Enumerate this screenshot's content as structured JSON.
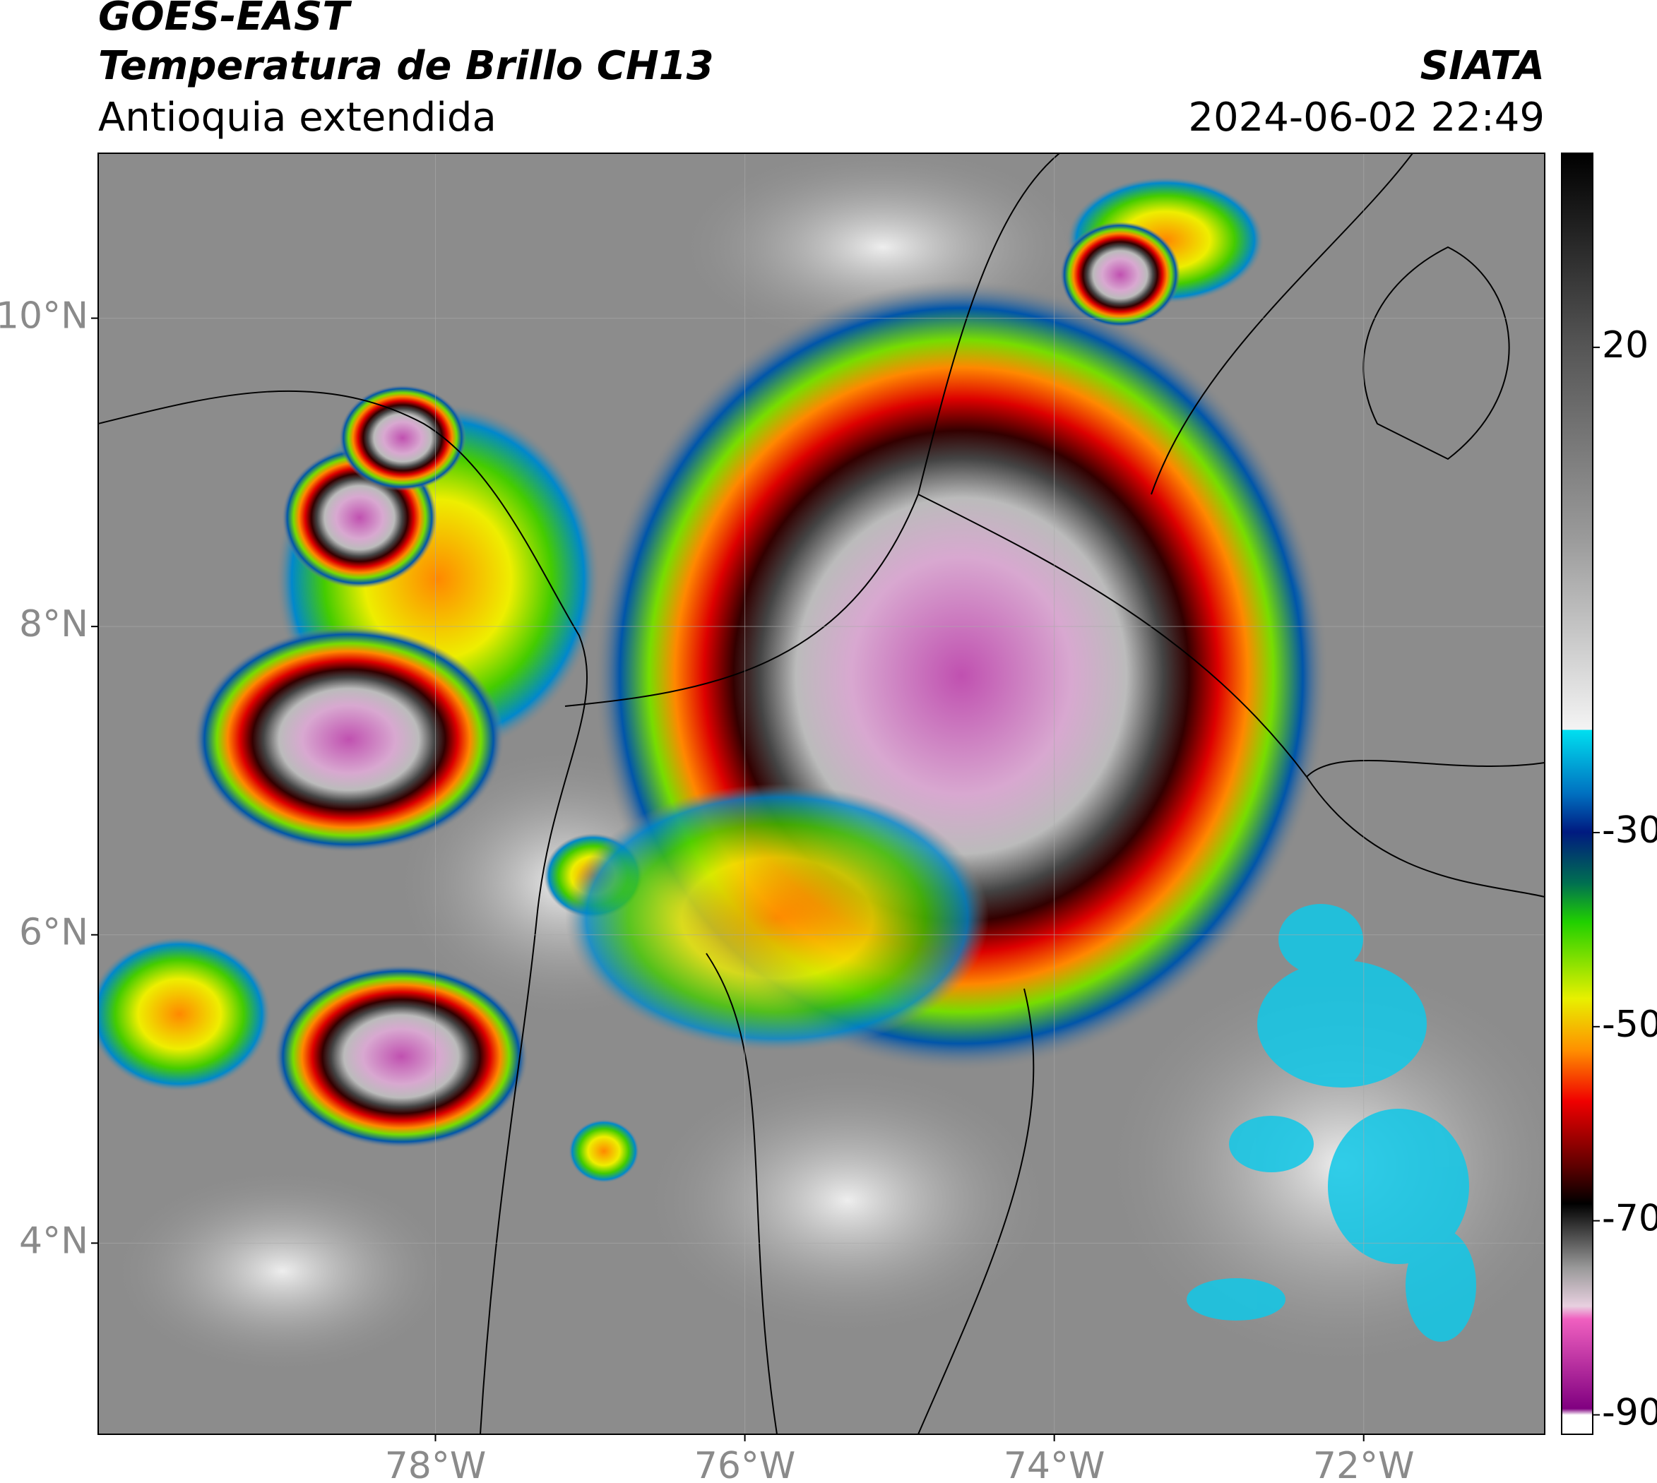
{
  "header": {
    "title": "GOES-EAST",
    "subtitle": "Temperatura de Brillo CH13",
    "region": "Antioquia extendida",
    "source": "SIATA",
    "datetime": "2024-06-02 22:49"
  },
  "map": {
    "xlim": [
      -80.18,
      -70.83
    ],
    "ylim": [
      2.76,
      11.07
    ],
    "xticks": [
      {
        "value": -78,
        "label": "78°W"
      },
      {
        "value": -76,
        "label": "76°W"
      },
      {
        "value": -74,
        "label": "74°W"
      },
      {
        "value": -72,
        "label": "72°W"
      }
    ],
    "yticks": [
      {
        "value": 4,
        "label": "4°N"
      },
      {
        "value": 6,
        "label": "6°N"
      },
      {
        "value": 8,
        "label": "8°N"
      },
      {
        "value": 10,
        "label": "10°N"
      }
    ],
    "grid": true
  },
  "colorbar": {
    "lim": [
      -92,
      40
    ],
    "ticks": [
      20,
      -30,
      -50,
      -70,
      -90
    ]
  }
}
